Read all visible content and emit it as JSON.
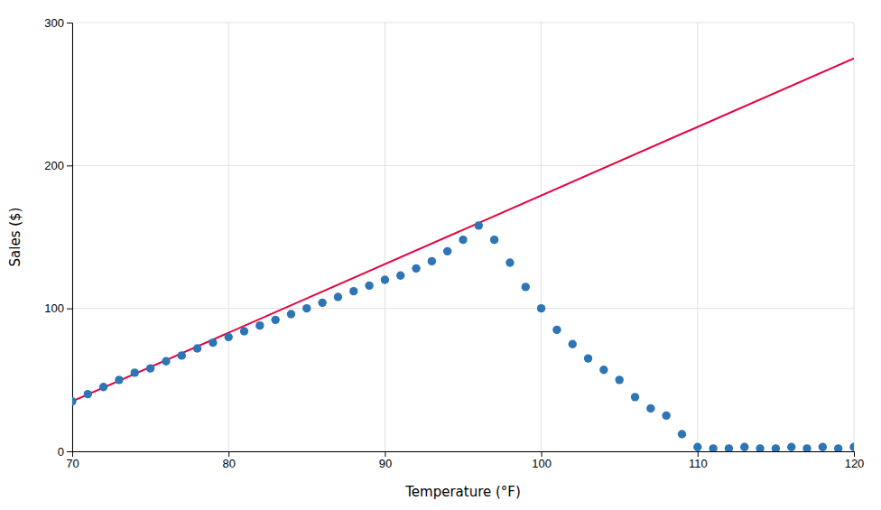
{
  "chart_data": {
    "type": "scatter",
    "xlabel": "Temperature (°F)",
    "ylabel": "Sales ($)",
    "xlim": [
      70,
      120
    ],
    "ylim": [
      0,
      300
    ],
    "xticks": [
      70,
      80,
      90,
      100,
      110,
      120
    ],
    "yticks": [
      0,
      100,
      200,
      300
    ],
    "grid": true,
    "series": [
      {
        "type": "scatter",
        "color": "#2e75b6",
        "x": [
          70,
          71,
          72,
          73,
          74,
          75,
          76,
          77,
          78,
          79,
          80,
          81,
          82,
          83,
          84,
          85,
          86,
          87,
          88,
          89,
          90,
          91,
          92,
          93,
          94,
          95,
          96,
          97,
          98,
          99,
          100,
          101,
          102,
          103,
          104,
          105,
          106,
          107,
          108,
          109,
          110,
          111,
          112,
          113,
          114,
          115,
          116,
          117,
          118,
          119,
          120
        ],
        "values": [
          35,
          40,
          45,
          50,
          55,
          58,
          63,
          67,
          72,
          76,
          80,
          84,
          88,
          92,
          96,
          100,
          104,
          108,
          112,
          116,
          120,
          123,
          128,
          133,
          140,
          148,
          158,
          148,
          132,
          115,
          100,
          85,
          75,
          65,
          57,
          50,
          38,
          30,
          25,
          12,
          3,
          2,
          2,
          3,
          2,
          2,
          3,
          2,
          3,
          2,
          3
        ]
      },
      {
        "type": "line",
        "color": "#e8003c",
        "x": [
          70,
          120
        ],
        "values": [
          35,
          275
        ]
      }
    ]
  }
}
